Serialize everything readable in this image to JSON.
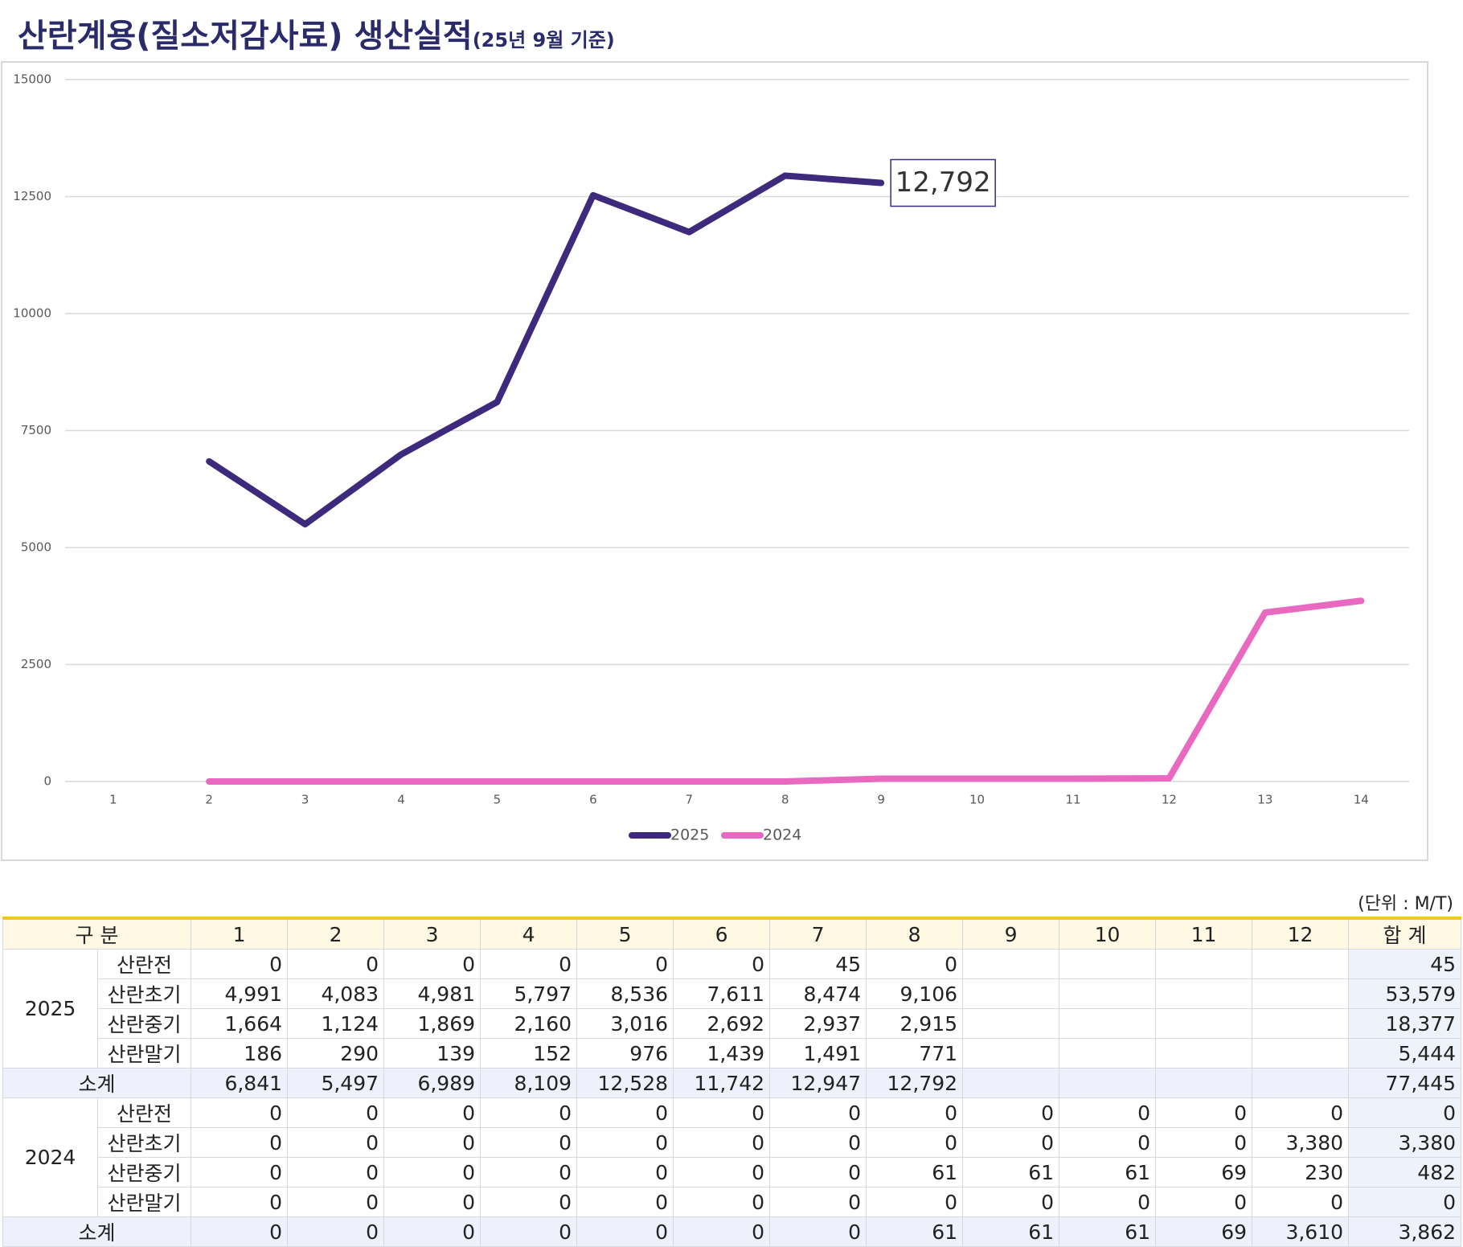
{
  "chart_data": {
    "type": "line",
    "title": "산란계용(질소저감사료) 생산실적",
    "subtitle": "(25년 9월 기준)",
    "x": [
      1,
      2,
      3,
      4,
      5,
      6,
      7,
      8,
      9,
      10,
      11,
      12,
      13,
      14
    ],
    "xlim": [
      0.5,
      14.5
    ],
    "xticks": [
      1,
      2,
      3,
      4,
      5,
      6,
      7,
      8,
      9,
      10,
      11,
      12,
      13,
      14
    ],
    "ylim": [
      0,
      15000
    ],
    "yticks": [
      0,
      2500,
      5000,
      7500,
      10000,
      12500,
      15000
    ],
    "grid": true,
    "legend": "bottom",
    "series": [
      {
        "name": "2025",
        "color": "#3d2a7d",
        "values": [
          null,
          6841,
          5497,
          6989,
          8109,
          12528,
          11742,
          12947,
          12792,
          null,
          null,
          null,
          null,
          null
        ],
        "value_labels": [
          null,
          null,
          null,
          null,
          null,
          null,
          null,
          null,
          "12,792",
          null,
          null,
          null,
          null,
          null
        ]
      },
      {
        "name": "2024",
        "color": "#e968c0",
        "values": [
          null,
          0,
          0,
          0,
          0,
          0,
          0,
          0,
          61,
          61,
          61,
          69,
          3610,
          3862
        ]
      }
    ]
  },
  "table": {
    "unit": "(단위 : M/T)",
    "header": [
      "구 분",
      "1",
      "2",
      "3",
      "4",
      "5",
      "6",
      "7",
      "8",
      "9",
      "10",
      "11",
      "12",
      "합 계"
    ],
    "groups": [
      {
        "year": "2025",
        "rows": [
          {
            "label": "산란전",
            "cells": [
              "0",
              "0",
              "0",
              "0",
              "0",
              "0",
              "45",
              "0",
              null,
              null,
              null,
              null,
              "45"
            ]
          },
          {
            "label": "산란초기",
            "cells": [
              "4,991",
              "4,083",
              "4,981",
              "5,797",
              "8,536",
              "7,611",
              "8,474",
              "9,106",
              null,
              null,
              null,
              null,
              "53,579"
            ]
          },
          {
            "label": "산란중기",
            "cells": [
              "1,664",
              "1,124",
              "1,869",
              "2,160",
              "3,016",
              "2,692",
              "2,937",
              "2,915",
              null,
              null,
              null,
              null,
              "18,377"
            ]
          },
          {
            "label": "산란말기",
            "cells": [
              "186",
              "290",
              "139",
              "152",
              "976",
              "1,439",
              "1,491",
              "771",
              null,
              null,
              null,
              null,
              "5,444"
            ]
          }
        ],
        "subtotal": {
          "label": "소계",
          "cells": [
            "6,841",
            "5,497",
            "6,989",
            "8,109",
            "12,528",
            "11,742",
            "12,947",
            "12,792",
            null,
            null,
            null,
            null,
            "77,445"
          ]
        }
      },
      {
        "year": "2024",
        "rows": [
          {
            "label": "산란전",
            "cells": [
              "0",
              "0",
              "0",
              "0",
              "0",
              "0",
              "0",
              "0",
              "0",
              "0",
              "0",
              "0",
              "0"
            ]
          },
          {
            "label": "산란초기",
            "cells": [
              "0",
              "0",
              "0",
              "0",
              "0",
              "0",
              "0",
              "0",
              "0",
              "0",
              "0",
              "3,380",
              "3,380"
            ]
          },
          {
            "label": "산란중기",
            "cells": [
              "0",
              "0",
              "0",
              "0",
              "0",
              "0",
              "0",
              "61",
              "61",
              "61",
              "69",
              "230",
              "482"
            ]
          },
          {
            "label": "산란말기",
            "cells": [
              "0",
              "0",
              "0",
              "0",
              "0",
              "0",
              "0",
              "0",
              "0",
              "0",
              "0",
              "0",
              "0"
            ]
          }
        ],
        "subtotal": {
          "label": "소계",
          "cells": [
            "0",
            "0",
            "0",
            "0",
            "0",
            "0",
            "0",
            "61",
            "61",
            "61",
            "69",
            "3,610",
            "3,862"
          ]
        }
      }
    ]
  }
}
